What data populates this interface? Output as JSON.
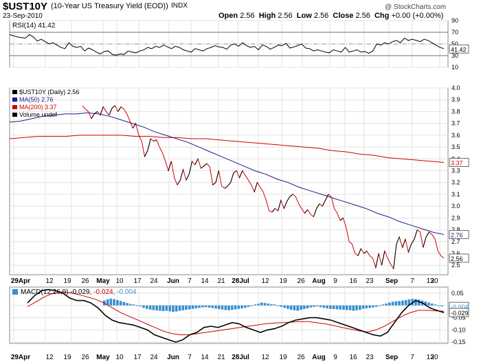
{
  "header": {
    "symbol": "$UST10Y",
    "description": "(10-Year US Treasury Yield (EOD))",
    "exchange": "INDX",
    "date": "23-Sep-2010",
    "brand": "@ StockCharts.com",
    "open_label": "Open",
    "open": "2.56",
    "high_label": "High",
    "high": "2.56",
    "low_label": "Low",
    "low": "2.56",
    "close_label": "Close",
    "close": "2.56",
    "chg_label": "Chg",
    "chg": "+0.00 (+0.00%)"
  },
  "chart_data": [
    {
      "type": "line",
      "panel": "RSI",
      "legend": "RSI(14) 41.42",
      "ylim": [
        10,
        90
      ],
      "ticks": [
        10,
        30,
        50,
        70,
        90
      ],
      "reference_lines": [
        30,
        50,
        70
      ],
      "last_label": "41.42",
      "series": [
        {
          "name": "RSI(14)",
          "color": "#000000",
          "values": [
            66,
            64,
            62,
            61,
            60,
            66,
            62,
            55,
            58,
            54,
            50,
            52,
            48,
            44,
            42,
            52,
            46,
            44,
            46,
            38,
            43,
            40,
            36,
            33,
            37,
            38,
            32,
            31,
            33,
            32,
            38,
            36,
            35,
            38,
            40,
            44,
            42,
            46,
            44,
            48,
            45,
            42,
            46,
            44,
            40,
            38,
            36,
            42,
            40,
            38,
            42,
            44,
            47,
            45,
            44,
            41,
            48,
            50,
            46,
            52,
            47,
            44,
            46,
            40,
            48,
            46,
            41,
            44,
            48,
            47,
            51,
            43,
            45,
            47,
            50,
            43,
            42,
            38,
            40,
            38,
            36,
            35,
            40,
            38,
            36,
            44,
            36,
            38,
            40,
            36,
            37,
            34,
            38,
            50,
            48,
            52,
            50,
            54,
            56,
            52,
            60,
            56,
            58,
            56,
            54,
            58,
            56,
            52,
            48,
            44,
            42
          ]
        }
      ]
    },
    {
      "type": "line",
      "panel": "Price",
      "legends": [
        "$UST10Y (Daily) 2.56",
        "MA(50) 2.76",
        "MA(200) 3.37",
        "Volume undef"
      ],
      "ylim": [
        2.42,
        4.0
      ],
      "ticks": [
        2.5,
        2.6,
        2.7,
        2.8,
        2.9,
        3.0,
        3.1,
        3.2,
        3.3,
        3.4,
        3.5,
        3.6,
        3.7,
        3.8,
        3.9,
        4.0
      ],
      "last_labels": {
        "price": "2.56",
        "ma50": "2.76",
        "ma200": "3.37"
      },
      "series": [
        {
          "name": "$UST10Y (Daily)",
          "color": "#000000",
          "values": [
            3.85,
            3.82,
            3.8,
            3.74,
            3.78,
            3.8,
            3.77,
            3.84,
            3.8,
            3.77,
            3.83,
            3.85,
            3.8,
            3.84,
            3.82,
            3.78,
            3.72,
            3.66,
            3.7,
            3.6,
            3.55,
            3.42,
            3.47,
            3.57,
            3.55,
            3.56,
            3.5,
            3.45,
            3.38,
            3.3,
            3.38,
            3.24,
            3.18,
            3.22,
            3.31,
            3.22,
            3.27,
            3.38,
            3.35,
            3.4,
            3.32,
            3.34,
            3.36,
            3.33,
            3.18,
            3.2,
            3.3,
            3.17,
            3.15,
            3.17,
            3.2,
            3.28,
            3.3,
            3.24,
            3.3,
            3.26,
            3.22,
            3.18,
            3.12,
            3.2,
            3.16,
            3.12,
            3.05,
            2.96,
            2.95,
            2.98,
            2.96,
            3.05,
            2.98,
            3.04,
            3.08,
            3.1,
            3.08,
            3.02,
            2.98,
            2.94,
            2.97,
            2.93,
            2.91,
            2.98,
            3.02,
            3.0,
            3.05,
            3.1,
            3.08,
            2.98,
            2.94,
            2.88,
            2.9,
            2.82,
            2.7,
            2.68,
            2.6,
            2.58,
            2.64,
            2.6,
            2.62,
            2.58,
            2.56,
            2.48,
            2.6,
            2.5,
            2.62,
            2.56,
            2.51,
            2.47,
            2.68,
            2.74,
            2.65,
            2.72,
            2.61,
            2.68,
            2.72,
            2.8,
            2.78,
            2.65,
            2.74,
            2.78,
            2.76,
            2.72,
            2.62,
            2.58,
            2.56
          ]
        },
        {
          "name": "MA(50)",
          "color": "#1a1a8c",
          "values": [
            3.71,
            3.72,
            3.74,
            3.76,
            3.77,
            3.78,
            3.78,
            3.79,
            3.78,
            3.76,
            3.73,
            3.7,
            3.67,
            3.63,
            3.6,
            3.57,
            3.54,
            3.5,
            3.46,
            3.42,
            3.38,
            3.34,
            3.3,
            3.27,
            3.23,
            3.2,
            3.16,
            3.13,
            3.1,
            3.07,
            3.04,
            3.01,
            2.98,
            2.94,
            2.91,
            2.87,
            2.84,
            2.81,
            2.78,
            2.76
          ]
        },
        {
          "name": "MA(200)",
          "color": "#cc0000",
          "values": [
            3.57,
            3.58,
            3.59,
            3.59,
            3.59,
            3.6,
            3.6,
            3.6,
            3.6,
            3.59,
            3.59,
            3.58,
            3.58,
            3.57,
            3.57,
            3.56,
            3.55,
            3.54,
            3.53,
            3.52,
            3.51,
            3.5,
            3.49,
            3.47,
            3.46,
            3.44,
            3.43,
            3.41,
            3.4,
            3.39,
            3.38,
            3.37
          ]
        }
      ]
    },
    {
      "type": "line",
      "panel": "MACD",
      "legend_prefix": "MACD(12,26,9)",
      "legend_values": [
        "-0.029,",
        "-0.024,",
        "-0.004"
      ],
      "ylim": [
        -0.155,
        0.075
      ],
      "ticks": [
        0.05,
        0.0,
        -0.05,
        -0.1,
        -0.15
      ],
      "last_labels": {
        "hist": "-0.004",
        "macd": "-0.029"
      },
      "series": [
        {
          "name": "MACD",
          "color": "#000000",
          "values": [
            0.01,
            0.04,
            0.06,
            0.065,
            0.06,
            0.05,
            0.03,
            0.02,
            0.02,
            0.01,
            -0.01,
            -0.04,
            -0.06,
            -0.07,
            -0.075,
            -0.08,
            -0.09,
            -0.1,
            -0.12,
            -0.13,
            -0.14,
            -0.15,
            -0.14,
            -0.12,
            -0.11,
            -0.09,
            -0.085,
            -0.09,
            -0.08,
            -0.07,
            -0.075,
            -0.09,
            -0.1,
            -0.11,
            -0.1,
            -0.095,
            -0.085,
            -0.07,
            -0.06,
            -0.055,
            -0.05,
            -0.05,
            -0.055,
            -0.06,
            -0.07,
            -0.08,
            -0.09,
            -0.1,
            -0.11,
            -0.12,
            -0.125,
            -0.11,
            -0.07,
            -0.03,
            0.0,
            0.02,
            0.01,
            -0.01,
            -0.02,
            -0.029
          ]
        },
        {
          "name": "Signal",
          "color": "#cc0000",
          "values": [
            -0.005,
            0.015,
            0.035,
            0.05,
            0.055,
            0.052,
            0.045,
            0.035,
            0.025,
            0.01,
            -0.01,
            -0.03,
            -0.045,
            -0.06,
            -0.075,
            -0.09,
            -0.105,
            -0.115,
            -0.12,
            -0.12,
            -0.115,
            -0.11,
            -0.105,
            -0.1,
            -0.095,
            -0.09,
            -0.085,
            -0.08,
            -0.075,
            -0.072,
            -0.07,
            -0.068,
            -0.066,
            -0.066,
            -0.07,
            -0.075,
            -0.082,
            -0.09,
            -0.097,
            -0.104,
            -0.108,
            -0.1,
            -0.085,
            -0.065,
            -0.045,
            -0.03,
            -0.02,
            -0.02,
            -0.022,
            -0.024
          ]
        },
        {
          "name": "Histogram",
          "color": "#3a8fd0",
          "values": [
            0.02,
            0.025,
            0.028,
            0.026,
            0.022,
            0.018,
            0.014,
            0.01,
            0.006,
            0.004,
            0.001,
            -0.004,
            -0.01,
            -0.014,
            -0.017,
            -0.019,
            -0.021,
            -0.022,
            -0.023,
            -0.022,
            -0.024,
            -0.026,
            -0.025,
            -0.022,
            -0.02,
            -0.018,
            -0.016,
            -0.014,
            -0.012,
            -0.01,
            -0.008,
            -0.007,
            -0.009,
            -0.011,
            -0.013,
            -0.015,
            -0.017,
            -0.019,
            -0.02,
            -0.018,
            -0.016,
            -0.014,
            -0.012,
            -0.01,
            -0.006,
            -0.003,
            0.004,
            0.007,
            0.012,
            0.01,
            0.008,
            0.005,
            0.004,
            -0.002,
            -0.006,
            -0.01,
            -0.014,
            -0.018,
            -0.02,
            -0.022,
            -0.018,
            -0.015,
            -0.012,
            -0.008,
            -0.006,
            -0.004,
            -0.007,
            -0.01,
            -0.012,
            -0.014,
            -0.015,
            -0.016,
            -0.017,
            -0.018,
            -0.019,
            -0.02,
            -0.022,
            -0.02,
            -0.018,
            -0.014,
            -0.012,
            -0.01,
            -0.008,
            -0.006,
            -0.002,
            0.004,
            0.008,
            0.012,
            0.015,
            0.017,
            0.018,
            0.02,
            0.022,
            0.025,
            0.027,
            0.026,
            0.024,
            0.02,
            0.016,
            0.012,
            0.008,
            0.004,
            0.0,
            -0.004
          ]
        }
      ]
    }
  ],
  "x_axis_labels": [
    "29Apr",
    "12",
    "19",
    "26",
    "May",
    "10",
    "17",
    "24",
    "Jun",
    "7",
    "14",
    "21",
    "28Jul",
    "12",
    "19",
    "26",
    "Aug",
    "9",
    "16",
    "23",
    "Sep",
    "7",
    "13",
    "20"
  ]
}
